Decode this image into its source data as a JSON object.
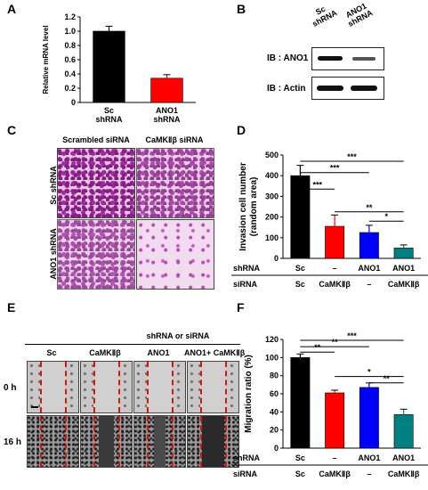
{
  "panels": {
    "a": "A",
    "b": "B",
    "c": "C",
    "d": "D",
    "e": "E",
    "f": "F"
  },
  "panel_b": {
    "lanes": [
      [
        "Sc",
        "shRNA"
      ],
      [
        "ANO1",
        "shRNA"
      ]
    ],
    "rows": [
      "IB : ANO1",
      "IB :  Actin"
    ]
  },
  "panel_c": {
    "col_headers": [
      "Scrambled siRNA",
      "CaMKⅡβ siRNA"
    ],
    "row_labels": [
      "Sc shRNA",
      "ANO1 shRNA"
    ]
  },
  "panel_e": {
    "header": "shRNA or siRNA",
    "col_headers": [
      "Sc",
      "CaMKⅡβ",
      "ANO1",
      "ANO1+ CaMKⅡβ"
    ],
    "row_labels": [
      "0 h",
      "16 h"
    ]
  },
  "chart_data": [
    {
      "type": "bar",
      "panel": "A",
      "ylabel": "Relative mRNA level",
      "ylim": [
        0,
        1.2
      ],
      "yticks": [
        "0",
        "0.2",
        "0.4",
        "0.6",
        "0.8",
        "1.0",
        "1.2"
      ],
      "categories": [
        [
          "Sc",
          "shRNA"
        ],
        [
          "ANO1",
          "shRNA"
        ]
      ],
      "values": [
        1.0,
        0.34
      ],
      "errors": [
        0.07,
        0.05
      ],
      "colors": [
        "#000000",
        "#ff0000"
      ]
    },
    {
      "type": "bar",
      "panel": "D",
      "ylabel": [
        "Invasion cell number",
        "(random area)"
      ],
      "ylim": [
        0,
        500
      ],
      "yticks": [
        "0",
        "100",
        "200",
        "300",
        "400",
        "500"
      ],
      "row_labels": [
        "shRNA",
        "siRNA"
      ],
      "shRNA": [
        "Sc",
        "–",
        "ANO1",
        "ANO1"
      ],
      "siRNA": [
        "Sc",
        "CaMKⅡβ",
        "–",
        "CaMKⅡβ"
      ],
      "values": [
        400,
        155,
        125,
        50
      ],
      "errors": [
        50,
        55,
        35,
        15
      ],
      "colors": [
        "#000000",
        "#ff0000",
        "#0000ff",
        "#008080"
      ],
      "significance": [
        {
          "from": 0,
          "to": 1,
          "label": "***",
          "y": 335
        },
        {
          "from": 0,
          "to": 2,
          "label": "***",
          "y": 415
        },
        {
          "from": 0,
          "to": 3,
          "label": "***",
          "y": 470
        },
        {
          "from": 1,
          "to": 3,
          "label": "**",
          "y": 225
        },
        {
          "from": 2,
          "to": 3,
          "label": "*",
          "y": 180
        }
      ]
    },
    {
      "type": "bar",
      "panel": "F",
      "ylabel": "Migration ratio (%)",
      "ylim": [
        0,
        120
      ],
      "yticks": [
        "0",
        "20",
        "40",
        "60",
        "80",
        "100",
        "120"
      ],
      "row_labels": [
        "shRNA",
        "siRNA"
      ],
      "shRNA": [
        "Sc",
        "–",
        "ANO1",
        "ANO1"
      ],
      "siRNA": [
        "Sc",
        "CaMKⅡβ",
        "–",
        "CaMKⅡβ"
      ],
      "values": [
        100,
        61,
        67,
        37
      ],
      "errors": [
        4,
        3,
        5,
        6
      ],
      "colors": [
        "#000000",
        "#ff0000",
        "#0000ff",
        "#008080"
      ],
      "significance": [
        {
          "from": 0,
          "to": 1,
          "label": "**",
          "y": 106
        },
        {
          "from": 0,
          "to": 2,
          "label": "**",
          "y": 112
        },
        {
          "from": 0,
          "to": 3,
          "label": "***",
          "y": 119
        },
        {
          "from": 1,
          "to": 3,
          "label": "*",
          "y": 79
        },
        {
          "from": 2,
          "to": 3,
          "label": "**",
          "y": 72
        }
      ]
    }
  ]
}
